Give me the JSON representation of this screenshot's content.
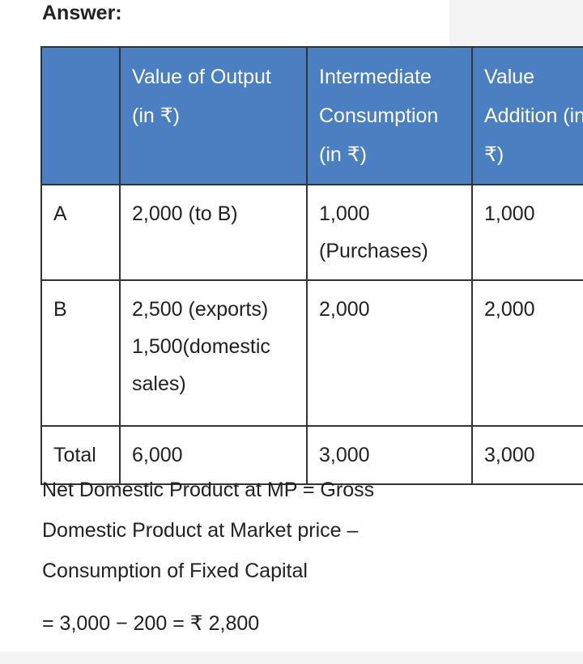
{
  "heading": "Answer:",
  "table": {
    "header": [
      "Value of Output (in ₹)",
      "Intermediate Consumption (in ₹)",
      "Value Addition (in ₹)"
    ],
    "rows": [
      [
        "A",
        [
          "2,000 (to B)"
        ],
        [
          "1,000 (Purchases)"
        ],
        [
          "1,000"
        ]
      ],
      [
        "B",
        [
          "2,500 (exports)",
          "1,500(domestic sales)"
        ],
        [
          "2,000"
        ],
        [
          "2,000"
        ]
      ],
      [
        "Total",
        [
          "6,000"
        ],
        [
          "3,000"
        ],
        [
          "3,000"
        ]
      ]
    ]
  },
  "paragraphs": [
    "Net Domestic Product at MP = Gross Domestic Product at Market price – Consumption of Fixed Capital",
    "= 3,000 − 200 = ₹ 2,800"
  ]
}
